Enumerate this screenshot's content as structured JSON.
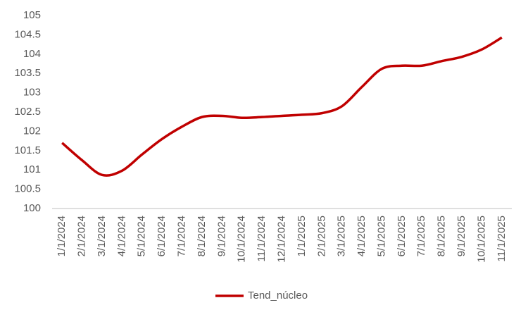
{
  "chart_data": {
    "type": "line",
    "categories": [
      "1/1/2024",
      "2/1/2024",
      "3/1/2024",
      "4/1/2024",
      "5/1/2024",
      "6/1/2024",
      "7/1/2024",
      "8/1/2024",
      "9/1/2024",
      "10/1/2024",
      "11/1/2024",
      "12/1/2024",
      "1/1/2025",
      "2/1/2025",
      "3/1/2025",
      "4/1/2025",
      "5/1/2025",
      "6/1/2025",
      "7/1/2025",
      "8/1/2025",
      "9/1/2025",
      "10/1/2025",
      "11/1/2025"
    ],
    "series": [
      {
        "name": "Tend_núcleo",
        "color": "#c00000",
        "values": [
          101.7,
          101.25,
          100.87,
          100.98,
          101.4,
          101.8,
          102.12,
          102.37,
          102.4,
          102.35,
          102.37,
          102.4,
          102.43,
          102.47,
          102.65,
          103.15,
          103.62,
          103.7,
          103.7,
          103.82,
          103.93,
          104.12,
          104.43
        ]
      }
    ],
    "ylim": [
      100,
      105
    ],
    "yticks": [
      100,
      100.5,
      101,
      101.5,
      102,
      102.5,
      103,
      103.5,
      104,
      104.5,
      105
    ],
    "grid": false,
    "legend": "bottom"
  }
}
